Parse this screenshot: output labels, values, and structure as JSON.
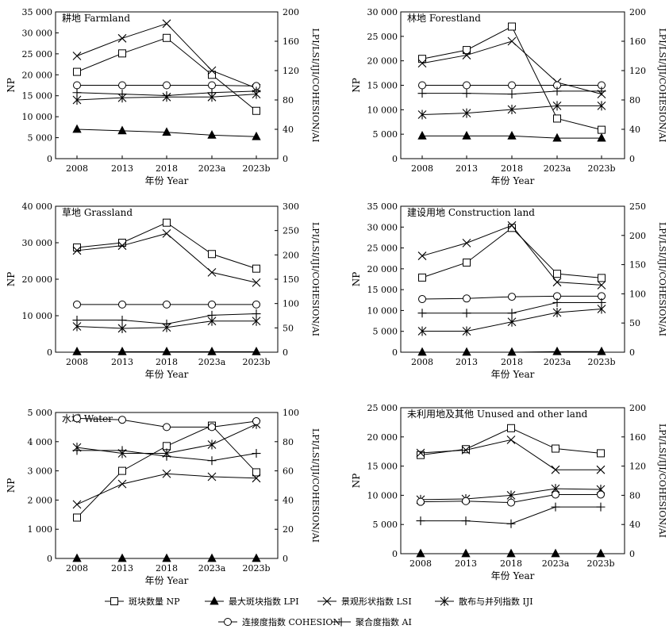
{
  "legend": {
    "items": [
      {
        "key": "NP",
        "label": "斑块数量 NP",
        "marker": "open-square"
      },
      {
        "key": "LPI",
        "label": "最大斑块指数 LPI",
        "marker": "filled-triangle"
      },
      {
        "key": "LSI",
        "label": "景观形状指数 LSI",
        "marker": "x-cross"
      },
      {
        "key": "IJI",
        "label": "散布与并列指数 IJI",
        "marker": "asterisk"
      },
      {
        "key": "COHESION",
        "label": "连接度指数 COHESION",
        "marker": "open-circle"
      },
      {
        "key": "AI",
        "label": "聚合度指数 AI",
        "marker": "plus"
      }
    ]
  },
  "chart_data": [
    {
      "type": "line",
      "title": "耕地 Farmland",
      "xlabel": "年份 Year",
      "ylabel": "NP",
      "y2label": "LPI/LSI/IJI/COHESION/AI",
      "categories": [
        "2008",
        "2013",
        "2018",
        "2023a",
        "2023b"
      ],
      "ylim": [
        0,
        35000
      ],
      "yticks": [
        0,
        5000,
        10000,
        15000,
        20000,
        25000,
        30000,
        35000
      ],
      "yticklabels": [
        "0",
        "5 000",
        "10 000",
        "15 000",
        "20 000",
        "25 000",
        "30 000",
        "35 000"
      ],
      "y2lim": [
        0,
        200
      ],
      "y2ticks": [
        0,
        40,
        80,
        120,
        160,
        200
      ],
      "y2ticklabels": [
        "0",
        "40",
        "80",
        "120",
        "160",
        "200"
      ],
      "grid": false,
      "series": [
        {
          "name": "斑块数量 NP",
          "axis": "left",
          "marker": "open-square",
          "values": [
            20700,
            25100,
            28800,
            20000,
            11400
          ]
        },
        {
          "name": "最大斑块指数 LPI",
          "axis": "right",
          "marker": "filled-triangle",
          "values": [
            40,
            38,
            36,
            32,
            30
          ]
        },
        {
          "name": "景观形状指数 LSI",
          "axis": "right",
          "marker": "x-cross",
          "values": [
            140,
            164,
            184,
            120,
            96
          ]
        },
        {
          "name": "散布与并列指数 IJI",
          "axis": "right",
          "marker": "asterisk",
          "values": [
            80,
            83,
            84,
            84,
            88
          ]
        },
        {
          "name": "连接度指数 COHESION",
          "axis": "right",
          "marker": "open-circle",
          "values": [
            100,
            100,
            100,
            100,
            99
          ]
        },
        {
          "name": "聚合度指数 AI",
          "axis": "right",
          "marker": "plus",
          "values": [
            90,
            88,
            86,
            90,
            92
          ]
        }
      ]
    },
    {
      "type": "line",
      "title": "林地 Forestland",
      "xlabel": "年份 Year",
      "ylabel": "NP",
      "y2label": "LPI/LSI/IJI/COHESION/AI",
      "categories": [
        "2008",
        "2013",
        "2018",
        "2023a",
        "2023b"
      ],
      "ylim": [
        0,
        30000
      ],
      "yticks": [
        0,
        5000,
        10000,
        15000,
        20000,
        25000,
        30000
      ],
      "yticklabels": [
        "0",
        "5 000",
        "10 000",
        "15 000",
        "20 000",
        "25 000",
        "30 000"
      ],
      "y2lim": [
        0,
        200
      ],
      "y2ticks": [
        0,
        40,
        80,
        120,
        160,
        200
      ],
      "y2ticklabels": [
        "0",
        "40",
        "80",
        "120",
        "160",
        "200"
      ],
      "grid": false,
      "series": [
        {
          "name": "斑块数量 NP",
          "axis": "left",
          "marker": "open-square",
          "values": [
            20400,
            22200,
            27000,
            8200,
            5900
          ]
        },
        {
          "name": "最大斑块指数 LPI",
          "axis": "right",
          "marker": "filled-triangle",
          "values": [
            31,
            31,
            31,
            28,
            28
          ]
        },
        {
          "name": "景观形状指数 LSI",
          "axis": "right",
          "marker": "x-cross",
          "values": [
            130,
            141,
            160,
            104,
            88
          ]
        },
        {
          "name": "散布与并列指数 IJI",
          "axis": "right",
          "marker": "asterisk",
          "values": [
            60,
            62,
            67,
            72,
            72
          ]
        },
        {
          "name": "连接度指数 COHESION",
          "axis": "right",
          "marker": "open-circle",
          "values": [
            100,
            100,
            100,
            100,
            100
          ]
        },
        {
          "name": "聚合度指数 AI",
          "axis": "right",
          "marker": "plus",
          "values": [
            89,
            89,
            88,
            92,
            92
          ]
        }
      ]
    },
    {
      "type": "line",
      "title": "草地 Grassland",
      "xlabel": "年份 Year",
      "ylabel": "NP",
      "y2label": "LPI/LSI/IJI/COHESION/AI",
      "categories": [
        "2008",
        "2013",
        "2018",
        "2023a",
        "2023b"
      ],
      "ylim": [
        0,
        40000
      ],
      "yticks": [
        0,
        10000,
        20000,
        30000,
        40000
      ],
      "yticklabels": [
        "0",
        "10 000",
        "20 000",
        "30 000",
        "40 000"
      ],
      "y2lim": [
        0,
        300
      ],
      "y2ticks": [
        0,
        50,
        100,
        150,
        200,
        250,
        300
      ],
      "y2ticklabels": [
        "0",
        "50",
        "100",
        "150",
        "200",
        "250",
        "300"
      ],
      "grid": false,
      "series": [
        {
          "name": "斑块数量 NP",
          "axis": "left",
          "marker": "open-square",
          "values": [
            28700,
            30000,
            35500,
            26900,
            22900
          ]
        },
        {
          "name": "最大斑块指数 LPI",
          "axis": "right",
          "marker": "filled-triangle",
          "values": [
            1,
            1,
            1,
            1,
            1
          ]
        },
        {
          "name": "景观形状指数 LSI",
          "axis": "right",
          "marker": "x-cross",
          "values": [
            209,
            219,
            244,
            164,
            143
          ]
        },
        {
          "name": "散布与并列指数 IJI",
          "axis": "right",
          "marker": "asterisk",
          "values": [
            53,
            49,
            51,
            64,
            64
          ]
        },
        {
          "name": "连接度指数 COHESION",
          "axis": "right",
          "marker": "open-circle",
          "values": [
            98,
            98,
            98,
            98,
            98
          ]
        },
        {
          "name": "聚合度指数 AI",
          "axis": "right",
          "marker": "plus",
          "values": [
            66,
            66,
            58,
            76,
            79
          ]
        }
      ]
    },
    {
      "type": "line",
      "title": "建设用地 Construction land",
      "xlabel": "年份 Year",
      "ylabel": "NP",
      "y2label": "LPI/LSI/IJI/COHESION/AI",
      "categories": [
        "2008",
        "2013",
        "2018",
        "2023a",
        "2023b"
      ],
      "ylim": [
        0,
        35000
      ],
      "yticks": [
        0,
        5000,
        10000,
        15000,
        20000,
        25000,
        30000,
        35000
      ],
      "yticklabels": [
        "0",
        "5 000",
        "10 000",
        "15 000",
        "20 000",
        "25 000",
        "30 000",
        "35 000"
      ],
      "y2lim": [
        0,
        250
      ],
      "y2ticks": [
        0,
        50,
        100,
        150,
        200,
        250
      ],
      "y2ticklabels": [
        "0",
        "50",
        "100",
        "150",
        "200",
        "250"
      ],
      "grid": false,
      "series": [
        {
          "name": "斑块数量 NP",
          "axis": "left",
          "marker": "open-square",
          "values": [
            17900,
            21500,
            29800,
            18800,
            17800
          ]
        },
        {
          "name": "最大斑块指数 LPI",
          "axis": "right",
          "marker": "filled-triangle",
          "values": [
            0,
            0,
            0,
            1,
            1
          ]
        },
        {
          "name": "景观形状指数 LSI",
          "axis": "right",
          "marker": "x-cross",
          "values": [
            165,
            187,
            217,
            120,
            115
          ]
        },
        {
          "name": "散布与并列指数 IJI",
          "axis": "right",
          "marker": "asterisk",
          "values": [
            36,
            36,
            52,
            68,
            74
          ]
        },
        {
          "name": "连接度指数 COHESION",
          "axis": "right",
          "marker": "open-circle",
          "values": [
            91,
            92,
            95,
            96,
            96
          ]
        },
        {
          "name": "聚合度指数 AI",
          "axis": "right",
          "marker": "plus",
          "values": [
            67,
            67,
            67,
            85,
            85
          ]
        }
      ]
    },
    {
      "type": "line",
      "title": "水域 Water",
      "xlabel": "年份 Year",
      "ylabel": "NP",
      "y2label": "LPI/LSI/IJI/COHESION/AI",
      "categories": [
        "2008",
        "2013",
        "2018",
        "2023a",
        "2023b"
      ],
      "ylim": [
        0,
        5000
      ],
      "yticks": [
        0,
        1000,
        2000,
        3000,
        4000,
        5000
      ],
      "yticklabels": [
        "0",
        "1 000",
        "2 000",
        "3 000",
        "4 000",
        "5 000"
      ],
      "y2lim": [
        0,
        100
      ],
      "y2ticks": [
        0,
        20,
        40,
        60,
        80,
        100
      ],
      "y2ticklabels": [
        "0",
        "20",
        "40",
        "60",
        "80",
        "100"
      ],
      "grid": false,
      "series": [
        {
          "name": "斑块数量 NP",
          "axis": "left",
          "marker": "open-square",
          "values": [
            1400,
            3000,
            3850,
            4550,
            2950
          ]
        },
        {
          "name": "最大斑块指数 LPI",
          "axis": "right",
          "marker": "filled-triangle",
          "values": [
            0,
            0,
            0,
            0,
            0
          ]
        },
        {
          "name": "景观形状指数 LSI",
          "axis": "right",
          "marker": "x-cross",
          "values": [
            37,
            51,
            58,
            56,
            55
          ]
        },
        {
          "name": "散布与并列指数 IJI",
          "axis": "right",
          "marker": "asterisk",
          "values": [
            76,
            72,
            72,
            78,
            92
          ]
        },
        {
          "name": "连接度指数 COHESION",
          "axis": "right",
          "marker": "open-circle",
          "values": [
            96,
            95,
            90,
            90,
            94
          ]
        },
        {
          "name": "聚合度指数 AI",
          "axis": "right",
          "marker": "plus",
          "values": [
            74,
            74,
            70,
            67,
            72
          ]
        }
      ]
    },
    {
      "type": "line",
      "title": "未利用地及其他 Unused and other land",
      "xlabel": "年份 Year",
      "ylabel": "NP",
      "y2label": "LPI/LSI/IJI/COHESION/AI",
      "categories": [
        "2008",
        "2013",
        "2018",
        "2023a",
        "2023b"
      ],
      "ylim": [
        0,
        25000
      ],
      "yticks": [
        0,
        5000,
        10000,
        15000,
        20000,
        25000
      ],
      "yticklabels": [
        "0",
        "5 000",
        "10 000",
        "15 000",
        "20 000",
        "25 000"
      ],
      "y2lim": [
        0,
        200
      ],
      "y2ticks": [
        0,
        40,
        80,
        120,
        160,
        200
      ],
      "y2ticklabels": [
        "0",
        "40",
        "80",
        "120",
        "160",
        "200"
      ],
      "grid": false,
      "series": [
        {
          "name": "斑块数量 NP",
          "axis": "left",
          "marker": "open-square",
          "values": [
            16900,
            17900,
            21500,
            18000,
            17200
          ]
        },
        {
          "name": "最大斑块指数 LPI",
          "axis": "right",
          "marker": "filled-triangle",
          "values": [
            0,
            0,
            0,
            0,
            0
          ]
        },
        {
          "name": "景观形状指数 LSI",
          "axis": "right",
          "marker": "x-cross",
          "values": [
            138,
            142,
            156,
            115,
            115
          ]
        },
        {
          "name": "散布与并列指数 IJI",
          "axis": "right",
          "marker": "asterisk",
          "values": [
            74,
            75,
            80,
            89,
            88
          ]
        },
        {
          "name": "连接度指数 COHESION",
          "axis": "right",
          "marker": "open-circle",
          "values": [
            71,
            72,
            70,
            81,
            81
          ]
        },
        {
          "name": "聚合度指数 AI",
          "axis": "right",
          "marker": "plus",
          "values": [
            45,
            45,
            41,
            64,
            64
          ]
        }
      ]
    }
  ]
}
